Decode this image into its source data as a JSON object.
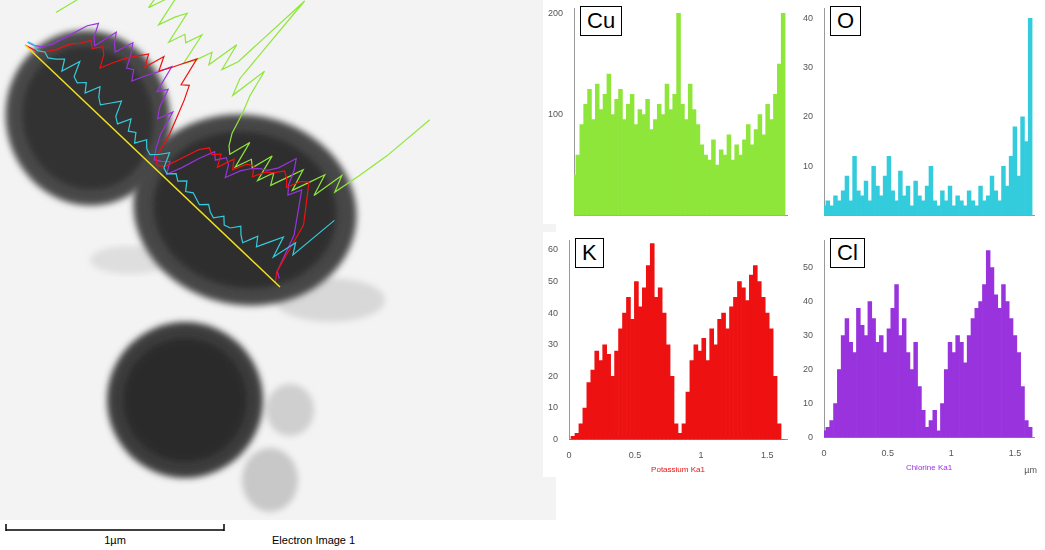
{
  "image": {
    "caption": "Electron Image 1",
    "scale_bar": "1µm"
  },
  "chart_data": [
    {
      "type": "bar",
      "title": "Cu",
      "color": "#8fe63a",
      "x": [
        0,
        0.03,
        0.06,
        0.09,
        0.12,
        0.15,
        0.18,
        0.21,
        0.24,
        0.27,
        0.3,
        0.33,
        0.36,
        0.39,
        0.42,
        0.45,
        0.48,
        0.51,
        0.54,
        0.57,
        0.6,
        0.63,
        0.66,
        0.69,
        0.72,
        0.75,
        0.78,
        0.81,
        0.84,
        0.87,
        0.9,
        0.93,
        0.96,
        0.99,
        1.02,
        1.05,
        1.08,
        1.11,
        1.14,
        1.17,
        1.2,
        1.23,
        1.26,
        1.29,
        1.32,
        1.35,
        1.38,
        1.41,
        1.44,
        1.47,
        1.5,
        1.53,
        1.56,
        1.59,
        1.62
      ],
      "values": [
        40,
        60,
        90,
        110,
        125,
        95,
        130,
        105,
        120,
        140,
        100,
        115,
        125,
        95,
        110,
        120,
        90,
        105,
        100,
        115,
        85,
        95,
        110,
        100,
        130,
        105,
        120,
        200,
        110,
        95,
        130,
        105,
        90,
        70,
        60,
        55,
        75,
        50,
        65,
        60,
        80,
        55,
        70,
        60,
        75,
        90,
        70,
        85,
        100,
        80,
        110,
        95,
        120,
        150,
        200
      ],
      "xlim": [
        0,
        1.65
      ],
      "ylim": [
        0,
        205
      ],
      "yticks": [
        100,
        200
      ],
      "grid": false,
      "tick_labels": "y"
    },
    {
      "type": "bar",
      "title": "O",
      "color": "#33ccdd",
      "x": [
        0,
        0.03,
        0.06,
        0.09,
        0.12,
        0.15,
        0.18,
        0.21,
        0.24,
        0.27,
        0.3,
        0.33,
        0.36,
        0.39,
        0.42,
        0.45,
        0.48,
        0.51,
        0.54,
        0.57,
        0.6,
        0.63,
        0.66,
        0.69,
        0.72,
        0.75,
        0.78,
        0.81,
        0.84,
        0.87,
        0.9,
        0.93,
        0.96,
        0.99,
        1.02,
        1.05,
        1.08,
        1.11,
        1.14,
        1.17,
        1.2,
        1.23,
        1.26,
        1.29,
        1.32,
        1.35,
        1.38,
        1.41,
        1.44,
        1.47,
        1.5,
        1.53,
        1.56,
        1.59,
        1.62
      ],
      "values": [
        2,
        3,
        2,
        4,
        3,
        5,
        8,
        3,
        12,
        5,
        4,
        7,
        3,
        10,
        6,
        4,
        8,
        12,
        5,
        3,
        9,
        4,
        6,
        2,
        7,
        4,
        3,
        6,
        10,
        3,
        2,
        5,
        3,
        6,
        2,
        4,
        3,
        2,
        5,
        3,
        2,
        6,
        3,
        4,
        8,
        5,
        3,
        10,
        6,
        12,
        18,
        8,
        20,
        15,
        40
      ],
      "xlim": [
        0,
        1.65
      ],
      "ylim": [
        0,
        42
      ],
      "yticks": [
        10,
        20,
        30,
        40
      ],
      "grid": false,
      "tick_labels": "y"
    },
    {
      "type": "bar",
      "title": "K",
      "color": "#ee1111",
      "x_label": "Potassium Ka1",
      "x": [
        0,
        0.03,
        0.06,
        0.09,
        0.12,
        0.15,
        0.18,
        0.21,
        0.24,
        0.27,
        0.3,
        0.33,
        0.36,
        0.39,
        0.42,
        0.45,
        0.48,
        0.51,
        0.54,
        0.57,
        0.6,
        0.63,
        0.66,
        0.69,
        0.72,
        0.75,
        0.78,
        0.81,
        0.84,
        0.87,
        0.9,
        0.93,
        0.96,
        0.99,
        1.02,
        1.05,
        1.08,
        1.11,
        1.14,
        1.17,
        1.2,
        1.23,
        1.26,
        1.29,
        1.32,
        1.35,
        1.38,
        1.41,
        1.44,
        1.47,
        1.5,
        1.53,
        1.56,
        1.59,
        1.62
      ],
      "values": [
        0,
        1,
        2,
        5,
        10,
        18,
        22,
        28,
        25,
        30,
        27,
        20,
        28,
        35,
        40,
        45,
        38,
        50,
        42,
        48,
        55,
        62,
        45,
        48,
        40,
        30,
        20,
        5,
        2,
        5,
        15,
        25,
        30,
        28,
        32,
        25,
        35,
        30,
        38,
        40,
        35,
        42,
        45,
        50,
        48,
        44,
        52,
        55,
        50,
        45,
        40,
        35,
        20,
        5,
        0
      ],
      "xlim": [
        0,
        1.65
      ],
      "xticks": [
        0,
        0.5,
        1,
        1.5
      ],
      "ylim": [
        0,
        63
      ],
      "yticks": [
        0,
        10,
        20,
        30,
        40,
        50,
        60
      ],
      "grid": false
    },
    {
      "type": "bar",
      "title": "Cl",
      "color": "#9933dd",
      "x_label": "Chlorine Ka1",
      "x_unit": "µm",
      "x": [
        0,
        0.03,
        0.06,
        0.09,
        0.12,
        0.15,
        0.18,
        0.21,
        0.24,
        0.27,
        0.3,
        0.33,
        0.36,
        0.39,
        0.42,
        0.45,
        0.48,
        0.51,
        0.54,
        0.57,
        0.6,
        0.63,
        0.66,
        0.69,
        0.72,
        0.75,
        0.78,
        0.81,
        0.84,
        0.87,
        0.9,
        0.93,
        0.96,
        0.99,
        1.02,
        1.05,
        1.08,
        1.11,
        1.14,
        1.17,
        1.2,
        1.23,
        1.26,
        1.29,
        1.32,
        1.35,
        1.38,
        1.41,
        1.44,
        1.47,
        1.5,
        1.53,
        1.56,
        1.59,
        1.62
      ],
      "values": [
        2,
        3,
        5,
        10,
        20,
        30,
        35,
        28,
        25,
        38,
        33,
        30,
        40,
        35,
        28,
        30,
        25,
        32,
        38,
        45,
        30,
        35,
        25,
        20,
        28,
        15,
        8,
        3,
        5,
        8,
        2,
        10,
        20,
        28,
        25,
        30,
        28,
        22,
        30,
        35,
        38,
        40,
        45,
        55,
        50,
        42,
        38,
        45,
        40,
        35,
        30,
        25,
        15,
        5,
        3
      ],
      "xlim": [
        0,
        1.65
      ],
      "xticks": [
        0,
        0.5,
        1,
        1.5
      ],
      "ylim": [
        0,
        58
      ],
      "yticks": [
        0,
        10,
        20,
        30,
        40,
        50
      ],
      "grid": false
    }
  ]
}
